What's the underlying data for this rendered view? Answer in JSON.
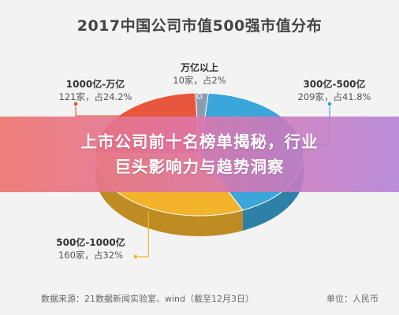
{
  "chart_data": {
    "type": "pie",
    "title": "2017中国公司市值500强市值分布",
    "slices": [
      {
        "label": "万亿以上",
        "count_text": "10家，占2%",
        "value": 2,
        "color": "#8a9db0"
      },
      {
        "label": "300亿-500亿",
        "count_text": "209家，占41.8%",
        "value": 41.8,
        "color": "#3aa6d9"
      },
      {
        "label": "500亿-1000亿",
        "count_text": "160家，占32%",
        "value": 32,
        "color": "#f3b42c"
      },
      {
        "label": "1000亿-万亿",
        "count_text": "121家，占24.2%",
        "value": 24.2,
        "color": "#e8563d"
      }
    ],
    "style": "3d-pie",
    "legend": "none"
  },
  "banner": {
    "line1": "上市公司前十名榜单揭秘，行业",
    "line2": "巨头影响力与趋势洞察"
  },
  "footer": {
    "source": "数据来源：21数据新闻实验室、wind（截至12月3日）",
    "unit": "单位：人民币"
  }
}
